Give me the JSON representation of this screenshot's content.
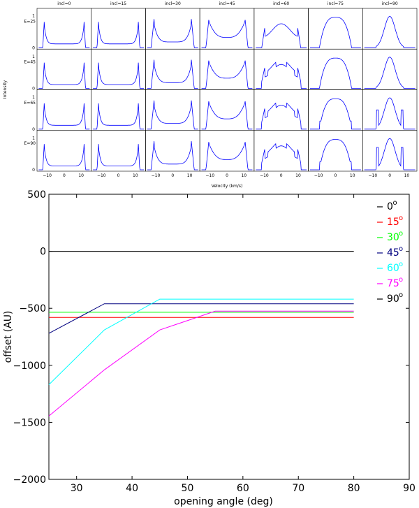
{
  "chart_data": [
    {
      "type": "line",
      "title": "",
      "xlabel": "Velocity (km/s)",
      "ylabel": "Intensity",
      "column_titles": [
        "incl=0",
        "incl=15",
        "incl=30",
        "incl=45",
        "incl=60",
        "incl=75",
        "incl=90"
      ],
      "row_labels": [
        "E=25",
        "E=45",
        "E=65",
        "E=90"
      ],
      "inclinations": [
        0,
        15,
        30,
        45,
        60,
        75,
        90
      ],
      "xlim": [
        -16,
        16
      ],
      "ylim": [
        0,
        1.1
      ],
      "xticks": [
        -10,
        0,
        10
      ],
      "xtick_labels": [
        "−10",
        "0",
        "10"
      ],
      "yticks": [
        0,
        1
      ],
      "ytick_labels": [
        "0",
        "1"
      ],
      "line_color": "#0000ff"
    },
    {
      "type": "line",
      "title": "",
      "xlabel": "opening angle (deg)",
      "ylabel": "offset (AU)",
      "xlim": [
        25,
        90
      ],
      "ylim": [
        -2000,
        500
      ],
      "xticks": [
        30,
        40,
        50,
        60,
        70,
        80,
        90
      ],
      "xtick_labels": [
        "30",
        "40",
        "50",
        "60",
        "70",
        "80",
        "90"
      ],
      "yticks": [
        -2000,
        -1500,
        -1000,
        -500,
        0,
        500
      ],
      "ytick_labels": [
        "−2000",
        "−1500",
        "−1000",
        "−500",
        "0",
        "500"
      ],
      "legend_position": "top-right",
      "series": [
        {
          "name": "0",
          "color": "#000000",
          "x": [
            25,
            80
          ],
          "y": [
            0,
            0
          ]
        },
        {
          "name": "15",
          "color": "#ff0000",
          "x": [
            25,
            80
          ],
          "y": [
            -580,
            -580
          ]
        },
        {
          "name": "30",
          "color": "#00ff00",
          "x": [
            25,
            80
          ],
          "y": [
            -535,
            -535
          ]
        },
        {
          "name": "45",
          "color": "#000080",
          "x": [
            25,
            35,
            80
          ],
          "y": [
            -720,
            -460,
            -460
          ]
        },
        {
          "name": "60",
          "color": "#00ffff",
          "x": [
            25,
            35,
            45,
            80
          ],
          "y": [
            -1170,
            -690,
            -420,
            -420
          ]
        },
        {
          "name": "75",
          "color": "#ff00ff",
          "x": [
            25,
            35,
            45,
            55,
            80
          ],
          "y": [
            -1445,
            -1040,
            -690,
            -525,
            -525
          ]
        },
        {
          "name": "90",
          "color": "#000000",
          "x": [
            25,
            80
          ],
          "y": [
            0,
            0
          ]
        }
      ],
      "legend_suffix": "o"
    }
  ]
}
